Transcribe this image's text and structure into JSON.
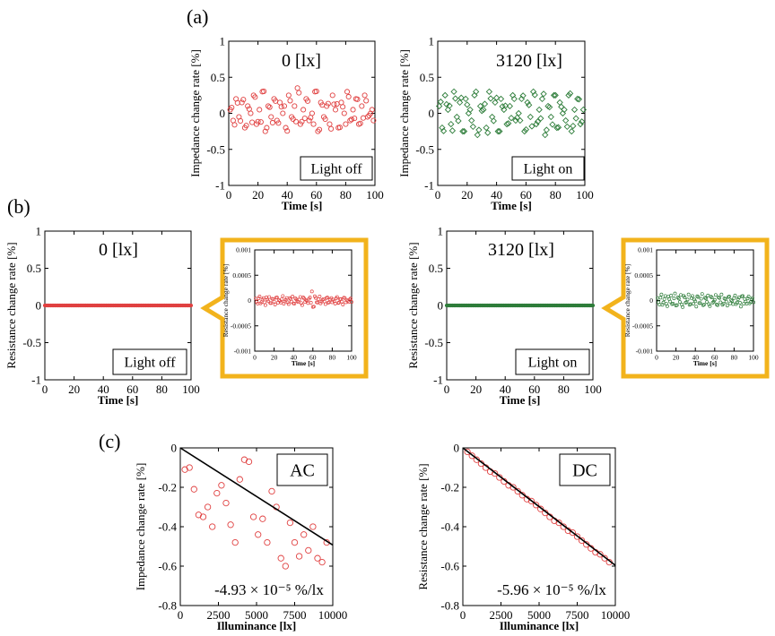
{
  "panels": [
    {
      "label": "(a)"
    },
    {
      "label": "(b)"
    },
    {
      "label": "(c)"
    }
  ],
  "colors": {
    "red": "#e04040",
    "green": "#2e7d3a",
    "orange": "#f2b31c",
    "black": "#000000"
  },
  "chart_data": [
    {
      "id": "a-left",
      "type": "scatter",
      "title": "0 [lx]",
      "annotation": "Light off",
      "xlabel": "Time [s]",
      "ylabel": "Impedance change rate [%]",
      "xlim": [
        0,
        100
      ],
      "ylim": [
        -1,
        1
      ],
      "xticks": [
        "0",
        "20",
        "40",
        "60",
        "80",
        "100"
      ],
      "yticks": [
        "-1",
        "-0.5",
        "0",
        "0.5",
        "1"
      ],
      "color": "#e04040",
      "series": [
        {
          "x": [
            1,
            3,
            5,
            7,
            9,
            11,
            13,
            15,
            17,
            19,
            21,
            23,
            25,
            27,
            29,
            31,
            33,
            35,
            37,
            39,
            41,
            43,
            45,
            47,
            49,
            51,
            53,
            55,
            57,
            59,
            61,
            63,
            65,
            67,
            69,
            71,
            73,
            75,
            77,
            79,
            81,
            83,
            85,
            87,
            89,
            91,
            93,
            95,
            97,
            99
          ],
          "values": [
            0.05,
            -0.1,
            0.2,
            -0.05,
            0.15,
            -0.2,
            0.1,
            0.0,
            0.25,
            -0.15,
            0.05,
            0.3,
            -0.25,
            0.1,
            -0.05,
            0.2,
            -0.1,
            0.15,
            0.0,
            -0.2,
            0.25,
            -0.05,
            0.1,
            0.35,
            -0.15,
            0.05,
            0.2,
            -0.1,
            0.0,
            0.3,
            -0.25,
            0.15,
            -0.05,
            0.1,
            -0.15,
            0.25,
            0.05,
            -0.2,
            0.15,
            0.0,
            0.3,
            -0.1,
            0.05,
            0.2,
            -0.15,
            0.1,
            0.25,
            -0.05,
            0.0,
            -0.1
          ]
        }
      ]
    },
    {
      "id": "a-right",
      "type": "scatter",
      "title": "3120 [lx]",
      "annotation": "Light on",
      "xlabel": "Time [s]",
      "ylabel": "Impedance change rate [%]",
      "xlim": [
        0,
        100
      ],
      "ylim": [
        -1,
        1
      ],
      "xticks": [
        "0",
        "20",
        "40",
        "60",
        "80",
        "100"
      ],
      "yticks": [
        "-1",
        "-0.5",
        "0",
        "0.5",
        "1"
      ],
      "color": "#2e7d3a",
      "series": [
        {
          "x": [
            1,
            3,
            5,
            7,
            9,
            11,
            13,
            15,
            17,
            19,
            21,
            23,
            25,
            27,
            29,
            31,
            33,
            35,
            37,
            39,
            41,
            43,
            45,
            47,
            49,
            51,
            53,
            55,
            57,
            59,
            61,
            63,
            65,
            67,
            69,
            71,
            73,
            75,
            77,
            79,
            81,
            83,
            85,
            87,
            89,
            91,
            93,
            95,
            97,
            99
          ],
          "values": [
            0.1,
            -0.2,
            0.25,
            0.05,
            -0.15,
            0.3,
            -0.05,
            0.15,
            -0.25,
            0.2,
            0.0,
            -0.1,
            0.25,
            -0.3,
            0.1,
            0.05,
            -0.2,
            0.3,
            -0.05,
            0.15,
            -0.25,
            0.2,
            0.05,
            -0.15,
            0.1,
            0.25,
            -0.1,
            0.0,
            0.2,
            -0.25,
            0.15,
            -0.05,
            0.3,
            -0.15,
            0.05,
            0.2,
            -0.3,
            0.1,
            -0.05,
            0.25,
            -0.2,
            0.15,
            0.0,
            -0.1,
            0.25,
            -0.25,
            0.05,
            0.2,
            -0.15,
            0.05
          ]
        }
      ]
    },
    {
      "id": "b-left",
      "type": "scatter",
      "title": "0 [lx]",
      "annotation": "Light off",
      "xlabel": "Time [s]",
      "ylabel": "Resistance change rate [%]",
      "xlim": [
        0,
        100
      ],
      "ylim": [
        -1,
        1
      ],
      "xticks": [
        "0",
        "20",
        "40",
        "60",
        "80",
        "100"
      ],
      "yticks": [
        "-1",
        "-0.5",
        "0",
        "0.5",
        "1"
      ],
      "color": "#e04040",
      "inset": {
        "xlabel": "Time [s]",
        "ylabel": "Resistance change rate [%]",
        "xlim": [
          0,
          100
        ],
        "ylim": [
          -0.001,
          0.001
        ],
        "xticks": [
          "0",
          "20",
          "40",
          "60",
          "80",
          "100"
        ],
        "yticks": [
          "-0.001",
          "-0.0005",
          "0",
          "0.0005",
          "0.001"
        ],
        "values": [
          4e-05,
          -6e-05,
          8e-05,
          -3e-05,
          5e-05,
          -9e-05,
          2e-05,
          7e-05,
          -5e-05,
          3e-05,
          -8e-05,
          6e-05,
          1e-05,
          -4e-05,
          9e-05,
          -2e-05,
          5e-05,
          -7e-05,
          3e-05,
          8e-05,
          -6e-05,
          2e-05,
          -3e-05,
          7e-05,
          -9e-05,
          4e-05,
          1e-05,
          -5e-05,
          6e-05,
          0.00018,
          -0.00012,
          5e-05,
          -4e-05,
          8e-05,
          -2e-05,
          3e-05,
          -7e-05,
          6e-05,
          -3e-05,
          5e-05,
          2e-05,
          -6e-05,
          7e-05,
          -4e-05,
          3e-05,
          -8e-05,
          5e-05,
          1e-05,
          -3e-05,
          4e-05
        ]
      }
    },
    {
      "id": "b-right",
      "type": "scatter",
      "title": "3120 [lx]",
      "annotation": "Light on",
      "xlabel": "Time [s]",
      "ylabel": "Resistance change rate [%]",
      "xlim": [
        0,
        100
      ],
      "ylim": [
        -1,
        1
      ],
      "xticks": [
        "0",
        "20",
        "40",
        "60",
        "80",
        "100"
      ],
      "yticks": [
        "-1",
        "-0.5",
        "0",
        "0.5",
        "1"
      ],
      "color": "#2e7d3a",
      "inset": {
        "xlabel": "Time [s]",
        "ylabel": "Resistance change rate [%]",
        "xlim": [
          0,
          100
        ],
        "ylim": [
          -0.001,
          0.001
        ],
        "xticks": [
          "0",
          "20",
          "40",
          "60",
          "80",
          "100"
        ],
        "yticks": [
          "-0.001",
          "-0.0005",
          "0",
          "0.0005",
          "0.001"
        ],
        "values": [
          5e-05,
          -8e-05,
          0.00012,
          -4e-05,
          9e-05,
          -0.00011,
          3e-05,
          0.0001,
          -6e-05,
          0.00014,
          -9e-05,
          4e-05,
          0.00011,
          -0.00013,
          6e-05,
          -3e-05,
          0.00012,
          -7e-05,
          9e-05,
          2e-05,
          -0.00012,
          7e-05,
          -5e-05,
          0.00013,
          -8e-05,
          4e-05,
          0.0001,
          -0.00011,
          6e-05,
          -2e-05,
          0.00011,
          -9e-05,
          5e-05,
          0.00012,
          -6e-05,
          3e-05,
          -0.0001,
          8e-05,
          1e-05,
          -7e-05,
          0.0001,
          -4e-05,
          6e-05,
          -0.00012,
          9e-05,
          3e-05,
          -6e-05,
          8e-05,
          -3e-05,
          5e-05
        ]
      }
    },
    {
      "id": "c-left",
      "type": "scatter",
      "annotation": "AC",
      "equation": "-4.93 × 10⁻⁵ %/lx",
      "xlabel": "Illuminance [lx]",
      "ylabel": "Impedance change rate [%]",
      "xlim": [
        0,
        10000
      ],
      "ylim": [
        -0.8,
        0
      ],
      "xticks": [
        "0",
        "2500",
        "5000",
        "7500",
        "10000"
      ],
      "yticks": [
        "-0.8",
        "-0.6",
        "-0.4",
        "-0.2",
        "0"
      ],
      "color": "#e04040",
      "fit": {
        "slope": -4.93e-05,
        "intercept": 0
      },
      "series": [
        {
          "x": [
            300,
            600,
            900,
            1200,
            1500,
            1800,
            2100,
            2400,
            2700,
            3000,
            3300,
            3600,
            3900,
            4200,
            4500,
            4800,
            5100,
            5400,
            5700,
            6000,
            6300,
            6600,
            6900,
            7200,
            7500,
            7800,
            8100,
            8400,
            8700,
            9000,
            9300,
            9600
          ],
          "values": [
            -0.11,
            -0.1,
            -0.21,
            -0.34,
            -0.35,
            -0.3,
            -0.4,
            -0.23,
            -0.19,
            -0.28,
            -0.39,
            -0.48,
            -0.16,
            -0.06,
            -0.07,
            -0.35,
            -0.44,
            -0.36,
            -0.48,
            -0.22,
            -0.3,
            -0.56,
            -0.6,
            -0.38,
            -0.48,
            -0.55,
            -0.44,
            -0.52,
            -0.4,
            -0.56,
            -0.58,
            -0.48
          ]
        }
      ]
    },
    {
      "id": "c-right",
      "type": "scatter",
      "annotation": "DC",
      "equation": "-5.96 × 10⁻⁵ %/lx",
      "xlabel": "Illuminance [lx]",
      "ylabel": "Resistance change rate [%]",
      "xlim": [
        0,
        10000
      ],
      "ylim": [
        -0.8,
        0
      ],
      "xticks": [
        "0",
        "2500",
        "5000",
        "7500",
        "10000"
      ],
      "yticks": [
        "-0.8",
        "-0.6",
        "-0.4",
        "-0.2",
        "0"
      ],
      "color": "#e04040",
      "fit": {
        "slope": -5.96e-05,
        "intercept": 0
      },
      "series": [
        {
          "x": [
            300,
            600,
            900,
            1200,
            1500,
            1800,
            2100,
            2400,
            2700,
            3000,
            3300,
            3600,
            3900,
            4200,
            4500,
            4800,
            5100,
            5400,
            5700,
            6000,
            6300,
            6600,
            6900,
            7200,
            7500,
            7800,
            8100,
            8400,
            8700,
            9000,
            9300,
            9600
          ],
          "values": [
            -0.02,
            -0.04,
            -0.06,
            -0.08,
            -0.1,
            -0.12,
            -0.13,
            -0.15,
            -0.17,
            -0.19,
            -0.2,
            -0.22,
            -0.24,
            -0.26,
            -0.27,
            -0.29,
            -0.31,
            -0.33,
            -0.35,
            -0.37,
            -0.38,
            -0.4,
            -0.42,
            -0.43,
            -0.45,
            -0.47,
            -0.49,
            -0.51,
            -0.53,
            -0.54,
            -0.56,
            -0.58
          ]
        }
      ]
    }
  ]
}
